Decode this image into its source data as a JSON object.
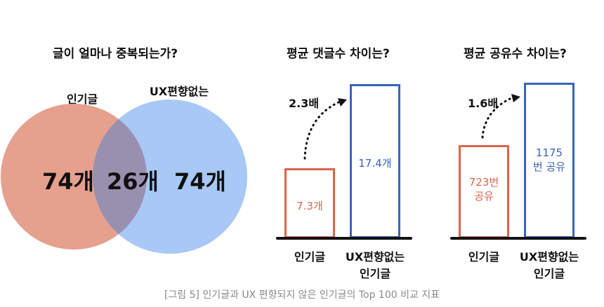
{
  "venn": {
    "title": "글이 얼마나 중복되는가?",
    "left_label": "인기글",
    "right_label_line1": "UX편향없는",
    "right_label_line2": "인기글",
    "left_only": "74개",
    "overlap": "26개",
    "right_only": "74개",
    "colors": {
      "left": "#e6a08e",
      "right": "#a8c8f5",
      "overlap": "#9990b0"
    }
  },
  "comments_chart": {
    "title": "평균 댓글수 차이는?",
    "multiplier": "2.3배",
    "bar1_label": "7.3개",
    "bar2_label": "17.4개",
    "x_label1": "인기글",
    "x_label2_line1": "UX편향없는",
    "x_label2_line2": "인기글"
  },
  "shares_chart": {
    "title": "평균 공유수 차이는?",
    "multiplier": "1.6배",
    "bar1_label_line1": "723번",
    "bar1_label_line2": "공유",
    "bar2_label_line1": "1175",
    "bar2_label_line2": "번 공유",
    "x_label1": "인기글",
    "x_label2_line1": "UX편향없는",
    "x_label2_line2": "인기글"
  },
  "caption": "[그림 5] 인기글과 UX 편향되지 않은 인기글의 Top 100 비교 지표",
  "chart_data": [
    {
      "type": "venn",
      "title": "글이 얼마나 중복되는가?",
      "sets": [
        "인기글",
        "UX편향없는 인기글"
      ],
      "values": {
        "left_only": 74,
        "overlap": 26,
        "right_only": 74
      }
    },
    {
      "type": "bar",
      "title": "평균 댓글수 차이는?",
      "categories": [
        "인기글",
        "UX편향없는 인기글"
      ],
      "values": [
        7.3,
        17.4
      ],
      "colors": [
        "#d9654a",
        "#3a64b8"
      ],
      "annotation": "2.3배"
    },
    {
      "type": "bar",
      "title": "평균 공유수 차이는?",
      "categories": [
        "인기글",
        "UX편향없는 인기글"
      ],
      "values": [
        723,
        1175
      ],
      "colors": [
        "#d9654a",
        "#3a64b8"
      ],
      "annotation": "1.6배"
    }
  ]
}
